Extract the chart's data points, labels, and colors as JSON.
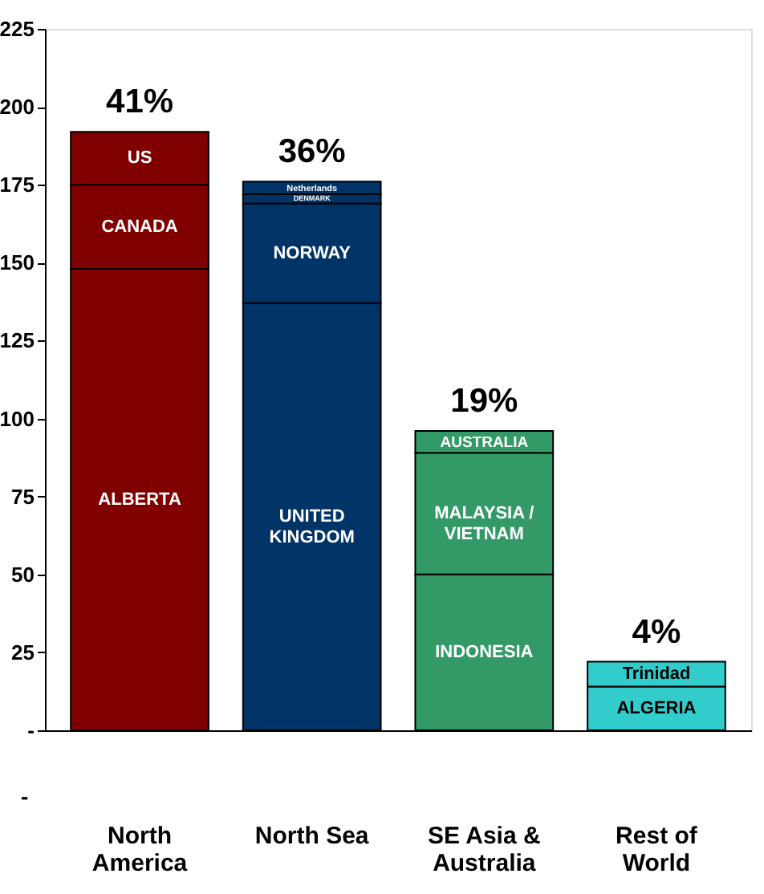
{
  "chart_data": {
    "type": "bar",
    "stacked": true,
    "categories": [
      "North America",
      "North Sea",
      "SE Asia & Australia",
      "Rest of World"
    ],
    "series": [
      {
        "values": [
          148,
          137,
          50,
          14
        ],
        "colors": [
          "#800000",
          "#003366",
          "#339966",
          "#33cccc"
        ],
        "value_labels": [
          "ALBERTA",
          "UNITED\nKINGDOM",
          "INDONESIA",
          "ALGERIA"
        ]
      },
      {
        "values": [
          27,
          32,
          39,
          8
        ],
        "colors": [
          "#800000",
          "#003366",
          "#339966",
          "#33cccc"
        ],
        "value_labels": [
          "CANADA",
          "NORWAY",
          "MALAYSIA /\nVIETNAM",
          "Trinidad"
        ]
      },
      {
        "values": [
          17,
          3,
          7,
          null
        ],
        "colors": [
          "#800000",
          "#003366",
          "#339966",
          "#33cccc"
        ],
        "value_labels": [
          "US",
          "DENMARK",
          "AUSTRALIA",
          null
        ]
      },
      {
        "values": [
          null,
          4,
          null,
          null
        ],
        "colors": [
          "#800000",
          "#003366",
          "#339966",
          "#33cccc"
        ],
        "value_labels": [
          null,
          "Netherlands",
          null,
          null
        ]
      }
    ],
    "ylim": [
      0,
      225
    ],
    "yticks": [
      {
        "value": 0,
        "label": "-"
      },
      25,
      50,
      75,
      100,
      125,
      150,
      175,
      200,
      225
    ],
    "grid": false,
    "annotations": [
      {
        "text": "41%",
        "x": "North America",
        "y": 192
      },
      {
        "text": "36%",
        "x": "North Sea",
        "y": 176
      },
      {
        "text": "19%",
        "x": "SE Asia & Australia",
        "y": 96
      },
      {
        "text": "4%",
        "x": "Rest of World",
        "y": 22
      },
      "-"
    ]
  }
}
